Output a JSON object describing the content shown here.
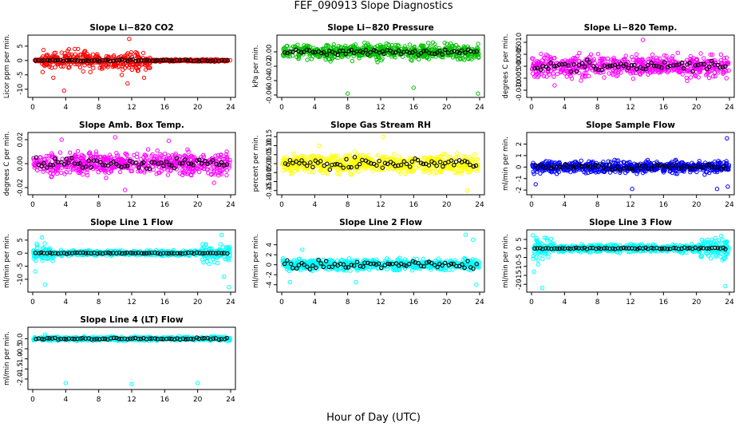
{
  "figure": {
    "title": "FEF_090913  Slope Diagnostics",
    "xlabel": "Hour of Day (UTC)"
  },
  "chart_data": [
    {
      "type": "scatter",
      "title": "Slope Li−820 CO2",
      "ylabel": "Licor ppm per min.",
      "xlim": [
        0,
        24
      ],
      "ylim": [
        -12,
        8
      ],
      "xticks": [
        "0",
        "4",
        "8",
        "12",
        "16",
        "20",
        "24"
      ],
      "yticks": [
        "-10",
        "-5",
        "0",
        "5"
      ],
      "color": "#ff0000",
      "spread": 2.0,
      "black_spread": 0.3,
      "bands": [
        [
          0,
          1,
          0.3
        ],
        [
          1,
          14.5,
          2.6
        ],
        [
          14.5,
          24,
          0.3
        ]
      ],
      "outliers": [
        [
          1.2,
          -4
        ],
        [
          2.5,
          -6
        ],
        [
          3.8,
          -10.5
        ],
        [
          5.5,
          4
        ],
        [
          7,
          -4
        ],
        [
          10,
          -2
        ],
        [
          10.8,
          -5
        ],
        [
          11.5,
          -8
        ],
        [
          11.7,
          7.5
        ],
        [
          12.8,
          -3.5
        ],
        [
          13.5,
          -6
        ],
        [
          14,
          -2.5
        ]
      ]
    },
    {
      "type": "scatter",
      "title": "Slope Li−820 Pressure",
      "ylabel": "kPa per min.",
      "xlim": [
        0,
        24
      ],
      "ylim": [
        -0.06,
        0.02
      ],
      "xticks": [
        "0",
        "4",
        "8",
        "12",
        "16",
        "20",
        "24"
      ],
      "yticks": [
        "-0.06",
        "-0.04",
        "-0.02",
        "0.00"
      ],
      "color": "#00c000",
      "spread": 0.009,
      "black_spread": 0.004,
      "bands": [],
      "outliers": [
        [
          8,
          -0.058
        ],
        [
          16,
          -0.05
        ],
        [
          23.8,
          -0.058
        ]
      ]
    },
    {
      "type": "scatter",
      "title": "Slope Li−820 Temp.",
      "ylabel": "degrees C per min.",
      "xlim": [
        0,
        24
      ],
      "ylim": [
        -0.012,
        0.012
      ],
      "xticks": [
        "0",
        "4",
        "8",
        "12",
        "16",
        "20",
        "24"
      ],
      "yticks": [
        "-0.010",
        "-0.005",
        "0.000",
        "0.005",
        "0.010"
      ],
      "color": "#ff00ff",
      "spread": 0.004,
      "black_spread": 0.002,
      "bands": [],
      "outliers": [
        [
          2.8,
          -0.008
        ],
        [
          13.5,
          0.011
        ],
        [
          6,
          -0.006
        ]
      ]
    },
    {
      "type": "scatter",
      "title": "Slope Amb. Box Temp.",
      "ylabel": "degrees C per min.",
      "xlim": [
        0,
        24
      ],
      "ylim": [
        -0.024,
        0.024
      ],
      "xticks": [
        "0",
        "4",
        "8",
        "12",
        "16",
        "20",
        "24"
      ],
      "yticks": [
        "-0.02",
        "0.00",
        "0.02"
      ],
      "color": "#ff00ff",
      "spread": 0.008,
      "black_spread": 0.004,
      "bands": [],
      "outliers": [
        [
          10,
          0.022
        ],
        [
          11.2,
          -0.022
        ],
        [
          3.5,
          0.02
        ],
        [
          22,
          -0.016
        ],
        [
          16.5,
          0.019
        ]
      ]
    },
    {
      "type": "scatter",
      "title": "Slope Gas Stream RH",
      "ylabel": "percent per min.",
      "xlim": [
        0,
        24
      ],
      "ylim": [
        -0.16,
        0.16
      ],
      "xticks": [
        "0",
        "4",
        "8",
        "12",
        "16",
        "20",
        "24"
      ],
      "yticks": [
        "-0.15",
        "-0.10",
        "-0.05",
        "0.00",
        "0.05",
        "0.10",
        "0.15"
      ],
      "color": "#ffff00",
      "spread": 0.045,
      "black_spread": 0.03,
      "bands": [],
      "outliers": [
        [
          12.3,
          0.15
        ],
        [
          22.5,
          -0.15
        ],
        [
          4.5,
          0.1
        ]
      ]
    },
    {
      "type": "scatter",
      "title": "Slope Sample Flow",
      "ylabel": "ml/min per min.",
      "xlim": [
        0,
        24
      ],
      "ylim": [
        -2.2,
        2.8
      ],
      "xticks": [
        "0",
        "4",
        "8",
        "12",
        "16",
        "20",
        "24"
      ],
      "yticks": [
        "-2",
        "-1",
        "0",
        "1",
        "2"
      ],
      "color": "#0000ff",
      "spread": 0.45,
      "black_spread": 0.2,
      "bands": [],
      "outliers": [
        [
          23.7,
          2.5
        ],
        [
          12.2,
          -1.9
        ],
        [
          22.5,
          -1.9
        ],
        [
          23.8,
          -1.7
        ],
        [
          0.5,
          -1.5
        ]
      ]
    },
    {
      "type": "scatter",
      "title": "Slope Line 1 Flow",
      "ylabel": "ml/min per min.",
      "xlim": [
        0,
        24
      ],
      "ylim": [
        -14,
        8
      ],
      "xticks": [
        "0",
        "4",
        "8",
        "12",
        "16",
        "20",
        "24"
      ],
      "yticks": [
        "-10",
        "-5",
        "0",
        "5"
      ],
      "color": "#00ffff",
      "spread": 0.8,
      "black_spread": 0.2,
      "bands": [
        [
          0,
          2.5,
          2.8
        ],
        [
          2.5,
          20.5,
          0.8
        ],
        [
          20.5,
          24,
          3.0
        ]
      ],
      "outliers": [
        [
          1.5,
          -12
        ],
        [
          0.3,
          -7
        ],
        [
          1.1,
          6
        ],
        [
          23.8,
          -13
        ],
        [
          22.9,
          7
        ],
        [
          23.2,
          -9
        ]
      ]
    },
    {
      "type": "scatter",
      "title": "Slope Line 2 Flow",
      "ylabel": "ml/min per min.",
      "xlim": [
        0,
        24
      ],
      "ylim": [
        -5,
        6.5
      ],
      "xticks": [
        "0",
        "4",
        "8",
        "12",
        "16",
        "20",
        "24"
      ],
      "yticks": [
        "-4",
        "-2",
        "0",
        "2",
        "4"
      ],
      "color": "#00ffff",
      "spread": 1.0,
      "black_spread": 0.8,
      "bands": [],
      "outliers": [
        [
          1,
          -3.5
        ],
        [
          2.5,
          3
        ],
        [
          22.3,
          6
        ],
        [
          23.6,
          -4
        ],
        [
          23.2,
          5
        ],
        [
          9,
          -3.5
        ]
      ]
    },
    {
      "type": "scatter",
      "title": "Slope Line 3 Flow",
      "ylabel": "ml/min per min.",
      "xlim": [
        0,
        24
      ],
      "ylim": [
        -23,
        9
      ],
      "xticks": [
        "0",
        "4",
        "8",
        "12",
        "16",
        "20",
        "24"
      ],
      "yticks": [
        "-20",
        "-15",
        "-10",
        "-5",
        "0",
        "5"
      ],
      "color": "#00ffff",
      "spread": 1.8,
      "black_spread": 0.4,
      "bands": [
        [
          0,
          2.5,
          5
        ],
        [
          2.5,
          20.5,
          1.8
        ],
        [
          20.5,
          24,
          5
        ]
      ],
      "outliers": [
        [
          1.3,
          -22
        ],
        [
          0.3,
          -13
        ],
        [
          23.5,
          -21
        ],
        [
          0.8,
          -9
        ],
        [
          23,
          7
        ],
        [
          1.6,
          6
        ]
      ]
    },
    {
      "type": "scatter",
      "title": "Slope Line 4 (LT) Flow",
      "ylabel": "ml/min per min.",
      "xlim": [
        0,
        24
      ],
      "ylim": [
        -2.4,
        0.45
      ],
      "xticks": [
        "0",
        "4",
        "8",
        "12",
        "16",
        "20",
        "24"
      ],
      "yticks": [
        "-2.0",
        "-1.5",
        "-1.0",
        "-0.5",
        "0.0"
      ],
      "color": "#00ffff",
      "spread": 0.08,
      "black_spread": 0.04,
      "bands": [],
      "outliers": [
        [
          4,
          -2.2
        ],
        [
          12,
          -2.25
        ],
        [
          20,
          -2.2
        ],
        [
          1.5,
          0.2
        ],
        [
          3,
          0.1
        ]
      ]
    }
  ]
}
